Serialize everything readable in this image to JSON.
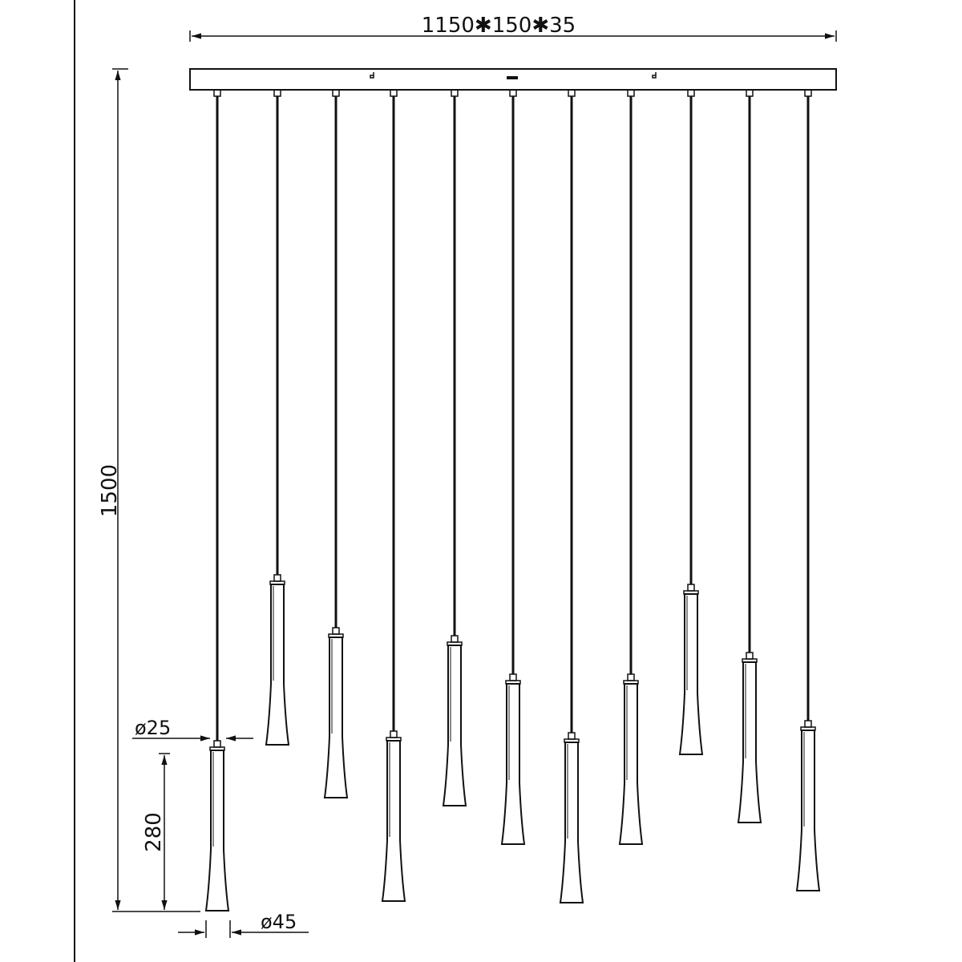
{
  "dimensions": {
    "canopy": "1150✱150✱35",
    "total_height": "1500",
    "shade_height": "280",
    "cord_diameter": "ø25",
    "shade_diameter": "ø45"
  },
  "pendant_count": 11,
  "colors": {
    "line": "#111111",
    "background": "#ffffff"
  }
}
